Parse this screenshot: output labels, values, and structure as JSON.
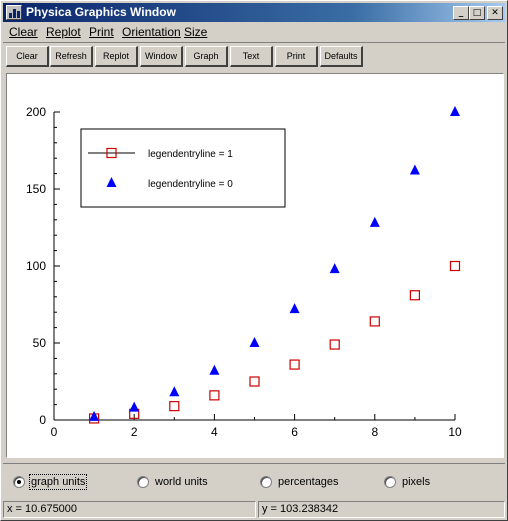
{
  "window": {
    "title": "Physica Graphics Window",
    "controls": {
      "minimize": "_",
      "maximize": "□",
      "close": "✕"
    }
  },
  "menu": [
    "Clear",
    "Replot",
    "Print",
    "Orientation",
    "Size"
  ],
  "toolbar": [
    "Clear",
    "Refresh",
    "Replot",
    "Window",
    "Graph",
    "Text",
    "Print",
    "Defaults"
  ],
  "radios": {
    "options": [
      "graph units",
      "world units",
      "percentages",
      "pixels"
    ],
    "selected": "graph units"
  },
  "status": {
    "x": "x = 10.675000",
    "y": "y = 103.238342"
  },
  "colors": {
    "series_square": "#cc0000",
    "series_triangle": "#0000ff"
  },
  "chart_data": {
    "type": "scatter",
    "title": "",
    "xlabel": "",
    "ylabel": "",
    "xlim": [
      0,
      10
    ],
    "ylim": [
      0,
      200
    ],
    "xticks": [
      "0",
      "2",
      "4",
      "6",
      "8",
      "10"
    ],
    "yticks": [
      "0",
      "50",
      "100",
      "150",
      "200"
    ],
    "grid": false,
    "legend_position": "top-left",
    "series": [
      {
        "name": "legendentryline = 1",
        "marker": "open-square",
        "line_in_legend": true,
        "x": [
          1,
          2,
          3,
          4,
          5,
          6,
          7,
          8,
          9,
          10
        ],
        "y": [
          1,
          4,
          9,
          16,
          25,
          36,
          49,
          64,
          81,
          100
        ]
      },
      {
        "name": "legendentryline = 0",
        "marker": "filled-triangle",
        "line_in_legend": false,
        "x": [
          1,
          2,
          3,
          4,
          5,
          6,
          7,
          8,
          9,
          10
        ],
        "y": [
          2,
          8,
          18,
          32,
          50,
          72,
          98,
          128,
          162,
          200
        ]
      }
    ]
  }
}
